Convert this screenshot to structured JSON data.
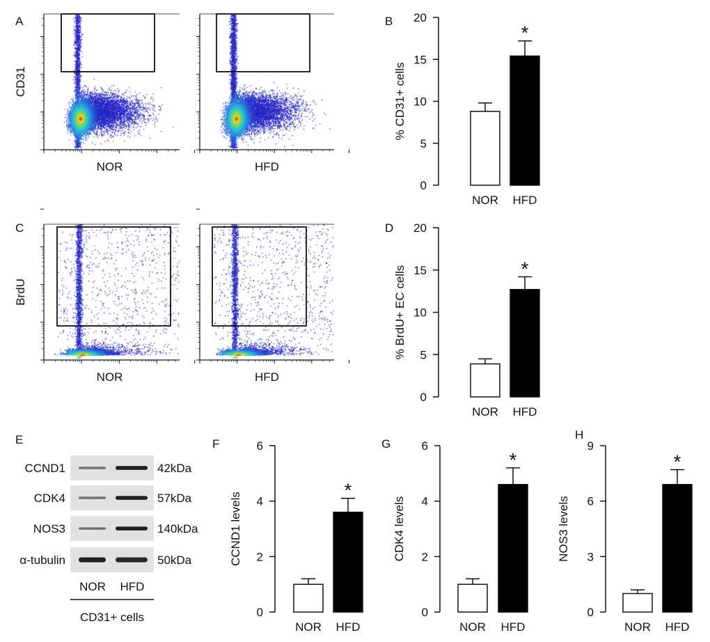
{
  "panel_labels": {
    "A": "A",
    "B": "B",
    "C": "C",
    "D": "D",
    "E": "E",
    "F": "F",
    "G": "G",
    "H": "H"
  },
  "flow": [
    {
      "panel": "A",
      "ylabel": "CD31",
      "plots": [
        {
          "label": "NOR"
        },
        {
          "label": "HFD"
        }
      ]
    },
    {
      "panel": "C",
      "ylabel": "BrdU",
      "plots": [
        {
          "label": "NOR"
        },
        {
          "label": "HFD"
        }
      ]
    }
  ],
  "western": {
    "panel": "E",
    "rows": [
      {
        "name": "CCND1",
        "size": "42kDa"
      },
      {
        "name": "CDK4",
        "size": "57kDa"
      },
      {
        "name": "NOS3",
        "size": "140kDa"
      },
      {
        "name": "α-tubulin",
        "size": "50kDa"
      }
    ],
    "lanes": [
      "NOR",
      "HFD"
    ],
    "group": "CD31+ cells"
  },
  "chart_data": [
    {
      "panel": "B",
      "type": "bar",
      "categories": [
        "NOR",
        "HFD"
      ],
      "values": [
        8.8,
        15.4
      ],
      "errors": [
        1.0,
        1.8
      ],
      "ylabel": "% CD31+ cells",
      "ylim": [
        0,
        20
      ],
      "yticks": [
        "0",
        "5",
        "10",
        "15",
        "20"
      ],
      "significance": [
        "",
        "*"
      ],
      "colors": [
        "#ffffff",
        "#000000"
      ]
    },
    {
      "panel": "D",
      "type": "bar",
      "categories": [
        "NOR",
        "HFD"
      ],
      "values": [
        3.9,
        12.7
      ],
      "errors": [
        0.6,
        1.5
      ],
      "ylabel": "% BrdU+ EC cells",
      "ylim": [
        0,
        20
      ],
      "yticks": [
        "0",
        "5",
        "10",
        "15",
        "20"
      ],
      "significance": [
        "",
        "*"
      ],
      "colors": [
        "#ffffff",
        "#000000"
      ]
    },
    {
      "panel": "F",
      "type": "bar",
      "categories": [
        "NOR",
        "HFD"
      ],
      "values": [
        1.0,
        3.6
      ],
      "errors": [
        0.2,
        0.5
      ],
      "ylabel": "CCND1 levels",
      "ylim": [
        0,
        6
      ],
      "yticks": [
        "0",
        "2",
        "4",
        "6"
      ],
      "significance": [
        "",
        "*"
      ],
      "colors": [
        "#ffffff",
        "#000000"
      ]
    },
    {
      "panel": "G",
      "type": "bar",
      "categories": [
        "NOR",
        "HFD"
      ],
      "values": [
        1.0,
        4.6
      ],
      "errors": [
        0.2,
        0.6
      ],
      "ylabel": "CDK4 levels",
      "ylim": [
        0,
        6
      ],
      "yticks": [
        "0",
        "2",
        "4",
        "6"
      ],
      "significance": [
        "",
        "*"
      ],
      "colors": [
        "#ffffff",
        "#000000"
      ]
    },
    {
      "panel": "H",
      "type": "bar",
      "categories": [
        "NOR",
        "HFD"
      ],
      "values": [
        1.0,
        6.9
      ],
      "errors": [
        0.2,
        0.8
      ],
      "ylabel": "NOS3 levels",
      "ylim": [
        0,
        9
      ],
      "yticks": [
        "0",
        "3",
        "6",
        "9"
      ],
      "significance": [
        "",
        "*"
      ],
      "colors": [
        "#ffffff",
        "#000000"
      ]
    }
  ]
}
